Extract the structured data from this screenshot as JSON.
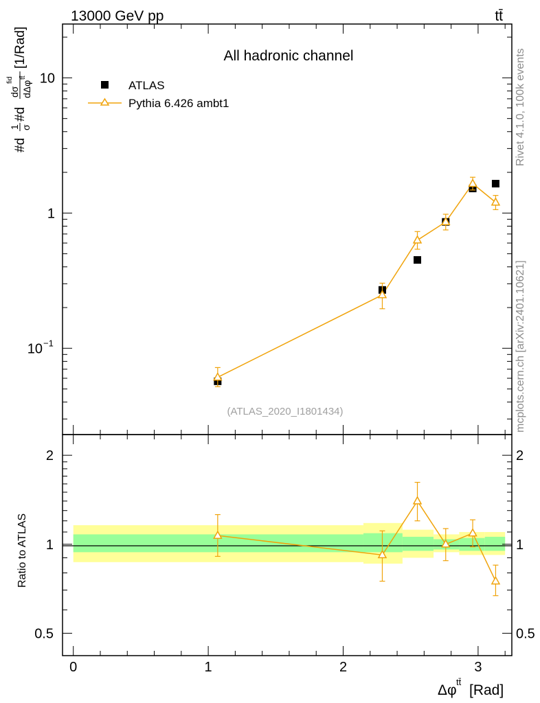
{
  "header": {
    "energy_label": "13000 GeV pp",
    "process_label": "tt̄"
  },
  "side_labels": {
    "rivet": "Rivet 4.1.0,  100k events",
    "mcplots": "mcplots.cern.ch [arXiv:2401.10621]"
  },
  "colors": {
    "data": "#000000",
    "mc": "#f0a30a",
    "band_inner": "#99ff99",
    "band_outer": "#ffff99"
  },
  "chart_data": [
    {
      "type": "scatter",
      "title": "All hadronic channel",
      "reference": "(ATLAS_2020_I1801434)",
      "ylabel_parts": {
        "prefix": "#d",
        "frac1_num": "1",
        "frac1_den": "σ",
        "mid": "#d",
        "frac2_num": "dσ",
        "frac2_num_sup": "fid",
        "frac2_den": "dΔφ",
        "frac2_den_sup": "tt̄",
        "unit": "[1/Rad]"
      },
      "yscale": "log",
      "ylim": [
        0.023,
        25
      ],
      "xlim": [
        -0.08,
        3.25
      ],
      "yticks": [
        {
          "value": 0.1,
          "base": "10",
          "exp": "−1"
        },
        {
          "value": 1,
          "label": "1"
        },
        {
          "value": 10,
          "label": "10"
        }
      ],
      "legend": {
        "placement": "top-left",
        "entries": [
          "ATLAS",
          "Pythia 6.426 ambt1"
        ]
      },
      "series": [
        {
          "name": "ATLAS",
          "marker": "square",
          "x": [
            1.07,
            2.29,
            2.55,
            2.76,
            2.96,
            3.13
          ],
          "y": [
            0.057,
            0.27,
            0.45,
            0.86,
            1.52,
            1.65
          ],
          "yerr_lo": [
            0.004,
            0.02,
            0.02,
            0.05,
            0.07,
            0.07
          ],
          "yerr_hi": [
            0.004,
            0.02,
            0.02,
            0.05,
            0.07,
            0.07
          ]
        },
        {
          "name": "Pythia 6.426 ambt1",
          "marker": "triangle",
          "x": [
            1.07,
            2.29,
            2.55,
            2.76,
            2.96,
            3.13
          ],
          "y": [
            0.061,
            0.248,
            0.63,
            0.86,
            1.65,
            1.2
          ],
          "yerr_lo": [
            0.009,
            0.052,
            0.09,
            0.11,
            0.17,
            0.14
          ],
          "yerr_hi": [
            0.011,
            0.055,
            0.1,
            0.12,
            0.19,
            0.15
          ]
        }
      ]
    },
    {
      "type": "scatter",
      "ylabel": "Ratio to ATLAS",
      "xlabel_parts": {
        "base": "Δφ",
        "sup": "tt̄",
        "unit": "[Rad]"
      },
      "yscale": "log",
      "ylim": [
        0.42,
        2.35
      ],
      "xlim": [
        -0.08,
        3.25
      ],
      "xticks": [
        0,
        1,
        2,
        3
      ],
      "yticks": [
        0.5,
        1,
        2
      ],
      "bands": [
        {
          "x": [
            0,
            2.15
          ],
          "inner": [
            0.94,
            1.08
          ],
          "outer": [
            0.87,
            1.16
          ]
        },
        {
          "x": [
            2.15,
            2.44
          ],
          "inner": [
            0.94,
            1.09
          ],
          "outer": [
            0.86,
            1.18
          ]
        },
        {
          "x": [
            2.44,
            2.67
          ],
          "inner": [
            0.95,
            1.06
          ],
          "outer": [
            0.9,
            1.12
          ]
        },
        {
          "x": [
            2.67,
            2.86
          ],
          "inner": [
            0.96,
            1.04
          ],
          "outer": [
            0.94,
            1.08
          ]
        },
        {
          "x": [
            2.86,
            3.05
          ],
          "inner": [
            0.95,
            1.05
          ],
          "outer": [
            0.92,
            1.1
          ]
        },
        {
          "x": [
            3.05,
            3.2
          ],
          "inner": [
            0.95,
            1.06
          ],
          "outer": [
            0.92,
            1.1
          ]
        }
      ],
      "series": [
        {
          "name": "Pythia 6.426 ambt1",
          "x": [
            1.07,
            2.29,
            2.55,
            2.76,
            2.96,
            3.13
          ],
          "y": [
            1.07,
            0.92,
            1.4,
            1.0,
            1.09,
            0.75
          ],
          "yerr_lo": [
            0.16,
            0.17,
            0.2,
            0.12,
            0.11,
            0.08
          ],
          "yerr_hi": [
            0.19,
            0.19,
            0.22,
            0.13,
            0.12,
            0.1
          ]
        }
      ]
    }
  ]
}
